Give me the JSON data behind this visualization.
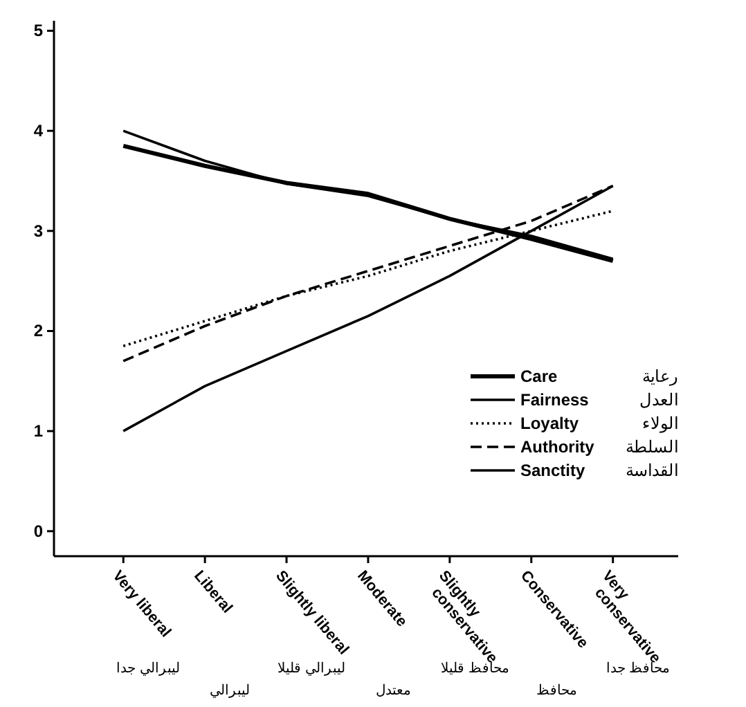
{
  "chart_data": {
    "type": "line",
    "categories": [
      "Very liberal",
      "Liberal",
      "Slightly liberal",
      "Moderate",
      "Slightly conservative",
      "Conservative",
      "Very conservative"
    ],
    "series": [
      {
        "name": "Care",
        "color": "#000000",
        "line_style": "solid",
        "values": [
          3.85,
          3.65,
          3.48,
          3.37,
          3.12,
          2.92,
          2.7
        ]
      },
      {
        "name": "Fairness",
        "color": "#000000",
        "line_style": "solid",
        "values": [
          4.0,
          3.7,
          3.47,
          3.35,
          3.12,
          2.95,
          2.72
        ]
      },
      {
        "name": "Loyalty",
        "color": "#000000",
        "line_style": "dotted",
        "values": [
          1.85,
          2.1,
          2.35,
          2.55,
          2.8,
          3.0,
          3.2
        ]
      },
      {
        "name": "Authority",
        "color": "#000000",
        "line_style": "dashed",
        "values": [
          1.7,
          2.05,
          2.35,
          2.6,
          2.85,
          3.1,
          3.45
        ]
      },
      {
        "name": "Sanctity",
        "color": "#000000",
        "line_style": "solid",
        "values": [
          1.0,
          1.45,
          1.8,
          2.15,
          2.55,
          3.0,
          3.45
        ]
      }
    ],
    "ylim": [
      -0.25,
      5.1
    ],
    "yticks": [
      0,
      1,
      2,
      3,
      4,
      5
    ],
    "grid": false,
    "legend": "right",
    "marker": "none",
    "annotations": [
      "رعاية",
      "العدل",
      "الولاء",
      "السلطة",
      "القداسة",
      "ليبرالي جدا",
      "ليبرالي",
      "ليبرالي قليلا",
      "معتدل",
      "محافظ قليلا",
      "محافظ",
      "محافظ جدا"
    ]
  }
}
